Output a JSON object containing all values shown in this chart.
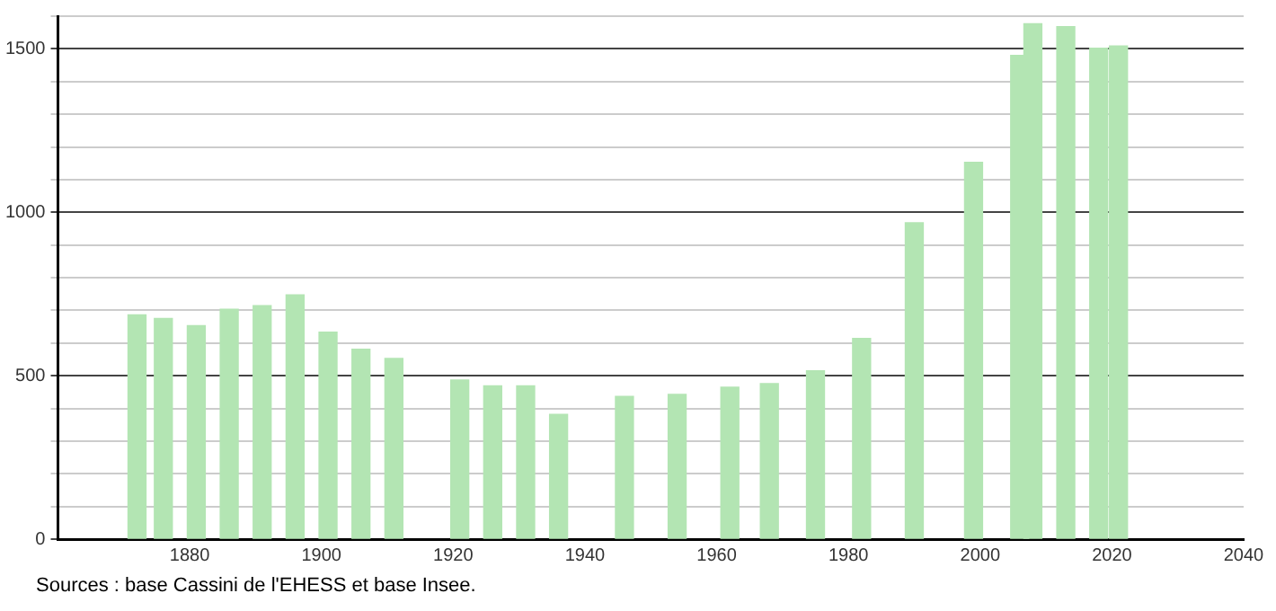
{
  "chart_data": {
    "type": "bar",
    "x": [
      1872,
      1876,
      1881,
      1886,
      1891,
      1896,
      1901,
      1906,
      1911,
      1921,
      1926,
      1931,
      1936,
      1946,
      1954,
      1962,
      1968,
      1975,
      1982,
      1990,
      1999,
      2006,
      2008,
      2013,
      2018,
      2021
    ],
    "values": [
      686,
      675,
      653,
      703,
      714,
      747,
      633,
      581,
      553,
      487,
      469,
      469,
      382,
      437,
      443,
      465,
      476,
      515,
      614,
      968,
      1153,
      1480,
      1577,
      1568,
      1502,
      1509
    ],
    "color": "#b3e5b3",
    "xlim": [
      1860,
      2040
    ],
    "xticks": [
      1880,
      1900,
      1920,
      1940,
      1960,
      1980,
      2000,
      2020,
      2040
    ],
    "ylim": [
      0,
      1600
    ],
    "yticks": [
      0,
      {
        "value": 100,
        "label": null
      },
      {
        "value": 200,
        "label": null
      },
      {
        "value": 300,
        "label": null
      },
      {
        "value": 400,
        "label": null
      },
      500,
      {
        "value": 600,
        "label": null
      },
      {
        "value": 700,
        "label": null
      },
      {
        "value": 800,
        "label": null
      },
      {
        "value": 900,
        "label": null
      },
      1000,
      {
        "value": 1100,
        "label": null
      },
      {
        "value": 1200,
        "label": null
      },
      {
        "value": 1300,
        "label": null
      },
      {
        "value": 1400,
        "label": null
      },
      1500,
      {
        "value": 1600,
        "label": null
      }
    ],
    "grid": "y",
    "legend": false,
    "annotations": [
      "Sources : base Cassini de l'EHESS et base Insee."
    ]
  }
}
